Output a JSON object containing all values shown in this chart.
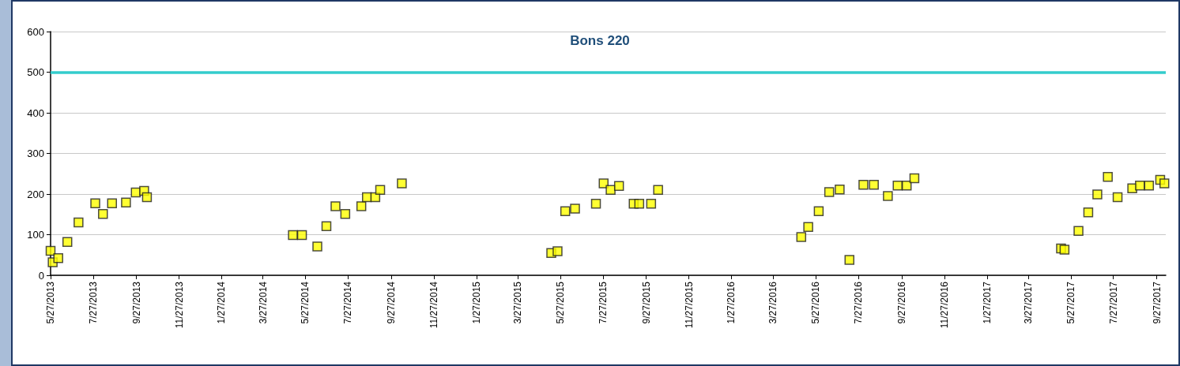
{
  "chart_data": {
    "type": "scatter",
    "title": "Bons 220",
    "x": [
      "2013-05-27",
      "2013-05-30",
      "2013-06-07",
      "2013-06-20",
      "2013-07-06",
      "2013-07-30",
      "2013-08-10",
      "2013-08-23",
      "2013-09-12",
      "2013-09-26",
      "2013-10-08",
      "2013-10-12",
      "2014-05-09",
      "2014-05-22",
      "2014-06-13",
      "2014-06-26",
      "2014-07-09",
      "2014-07-23",
      "2014-08-15",
      "2014-08-23",
      "2014-09-04",
      "2014-09-11",
      "2014-10-12",
      "2015-05-14",
      "2015-05-23",
      "2015-06-03",
      "2015-06-17",
      "2015-07-17",
      "2015-07-28",
      "2015-08-07",
      "2015-08-19",
      "2015-09-09",
      "2015-09-17",
      "2015-10-04",
      "2015-10-14",
      "2016-05-06",
      "2016-05-16",
      "2016-05-31",
      "2016-06-15",
      "2016-06-30",
      "2016-07-14",
      "2016-08-03",
      "2016-08-18",
      "2016-09-07",
      "2016-09-21",
      "2016-10-04",
      "2016-10-15",
      "2017-05-13",
      "2017-05-18",
      "2017-06-07",
      "2017-06-21",
      "2017-07-04",
      "2017-07-19",
      "2017-08-02",
      "2017-08-23",
      "2017-09-03",
      "2017-09-16",
      "2017-10-02",
      "2017-10-08"
    ],
    "values": [
      60,
      32,
      42,
      82,
      130,
      177,
      151,
      177,
      179,
      204,
      208,
      192,
      99,
      99,
      71,
      121,
      170,
      151,
      170,
      192,
      192,
      210,
      226,
      55,
      59,
      158,
      164,
      176,
      226,
      210,
      220,
      176,
      176,
      176,
      210,
      94,
      119,
      158,
      205,
      211,
      38,
      223,
      223,
      195,
      221,
      221,
      239,
      66,
      63,
      109,
      155,
      199,
      242,
      192,
      214,
      221,
      221,
      235,
      226
    ],
    "color": "#ffff00",
    "marker": "square",
    "ylim": [
      0,
      600
    ],
    "yticks": [
      0,
      100,
      200,
      300,
      400,
      500,
      600
    ],
    "xlim": [
      "2013-05-27",
      "2017-10-10"
    ],
    "xticks": [
      {
        "value": "2013-05-27",
        "label": "5/27/2013"
      },
      {
        "value": "2013-07-27",
        "label": "7/27/2013"
      },
      {
        "value": "2013-09-27",
        "label": "9/27/2013"
      },
      {
        "value": "2013-11-27",
        "label": "11/27/2013"
      },
      {
        "value": "2014-01-27",
        "label": "1/27/2014"
      },
      {
        "value": "2014-03-27",
        "label": "3/27/2014"
      },
      {
        "value": "2014-05-27",
        "label": "5/27/2014"
      },
      {
        "value": "2014-07-27",
        "label": "7/27/2014"
      },
      {
        "value": "2014-09-27",
        "label": "9/27/2014"
      },
      {
        "value": "2014-11-27",
        "label": "11/27/2014"
      },
      {
        "value": "2015-01-27",
        "label": "1/27/2015"
      },
      {
        "value": "2015-03-27",
        "label": "3/27/2015"
      },
      {
        "value": "2015-05-27",
        "label": "5/27/2015"
      },
      {
        "value": "2015-07-27",
        "label": "7/27/2015"
      },
      {
        "value": "2015-09-27",
        "label": "9/27/2015"
      },
      {
        "value": "2015-11-27",
        "label": "11/27/2015"
      },
      {
        "value": "2016-01-27",
        "label": "1/27/2016"
      },
      {
        "value": "2016-03-27",
        "label": "3/27/2016"
      },
      {
        "value": "2016-05-27",
        "label": "5/27/2016"
      },
      {
        "value": "2016-07-27",
        "label": "7/27/2016"
      },
      {
        "value": "2016-09-27",
        "label": "9/27/2016"
      },
      {
        "value": "2016-11-27",
        "label": "11/27/2016"
      },
      {
        "value": "2017-01-27",
        "label": "1/27/2017"
      },
      {
        "value": "2017-03-27",
        "label": "3/27/2017"
      },
      {
        "value": "2017-05-27",
        "label": "5/27/2017"
      },
      {
        "value": "2017-07-27",
        "label": "7/27/2017"
      },
      {
        "value": "2017-09-27",
        "label": "9/27/2017"
      }
    ],
    "ref_lines": [
      {
        "axis": "y",
        "value": 500,
        "color": "#33cccc"
      }
    ],
    "grid": "y"
  }
}
